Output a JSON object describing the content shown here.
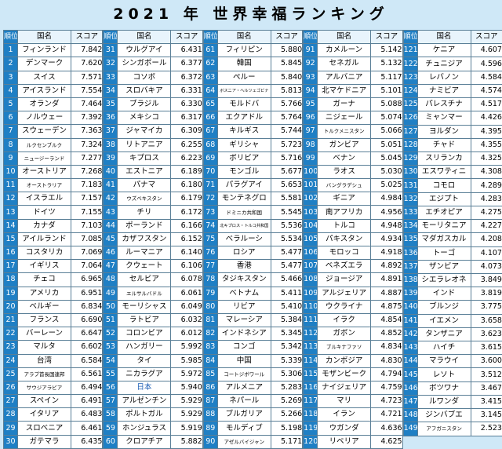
{
  "title": "2021 年 世界幸福ランキング",
  "headers": {
    "rank": "順位",
    "country": "国名",
    "score": "スコア"
  },
  "rows": [
    [
      "1",
      "フィンランド",
      "7.842"
    ],
    [
      "2",
      "デンマーク",
      "7.620"
    ],
    [
      "3",
      "スイス",
      "7.571"
    ],
    [
      "4",
      "アイスランド",
      "7.554"
    ],
    [
      "5",
      "オランダ",
      "7.464"
    ],
    [
      "6",
      "ノルウェー",
      "7.392"
    ],
    [
      "7",
      "スウェーデン",
      "7.363"
    ],
    [
      "8",
      "ルクセンブルク",
      "7.324"
    ],
    [
      "9",
      "ニュージーランド",
      "7.277"
    ],
    [
      "10",
      "オーストリア",
      "7.268"
    ],
    [
      "11",
      "オーストラリア",
      "7.183"
    ],
    [
      "12",
      "イスラエル",
      "7.157"
    ],
    [
      "13",
      "ドイツ",
      "7.155"
    ],
    [
      "14",
      "カナダ",
      "7.103"
    ],
    [
      "15",
      "アイルランド",
      "7.085"
    ],
    [
      "16",
      "コスタリカ",
      "7.069"
    ],
    [
      "17",
      "イギリス",
      "7.064"
    ],
    [
      "18",
      "チェコ",
      "6.965"
    ],
    [
      "19",
      "アメリカ",
      "6.951"
    ],
    [
      "20",
      "ベルギー",
      "6.834"
    ],
    [
      "21",
      "フランス",
      "6.690"
    ],
    [
      "22",
      "バーレーン",
      "6.647"
    ],
    [
      "23",
      "マルタ",
      "6.602"
    ],
    [
      "24",
      "台湾",
      "6.584"
    ],
    [
      "25",
      "アラブ首長国連邦",
      "6.561"
    ],
    [
      "26",
      "サウジアラビア",
      "6.494"
    ],
    [
      "27",
      "スペイン",
      "6.491"
    ],
    [
      "28",
      "イタリア",
      "6.483"
    ],
    [
      "29",
      "スロベニア",
      "6.461"
    ],
    [
      "30",
      "ガテマラ",
      "6.435"
    ],
    [
      "31",
      "ウルグアイ",
      "6.431"
    ],
    [
      "32",
      "シンガポール",
      "6.377"
    ],
    [
      "33",
      "コソボ",
      "6.372"
    ],
    [
      "34",
      "スロバキア",
      "6.331"
    ],
    [
      "35",
      "ブラジル",
      "6.330"
    ],
    [
      "36",
      "メキシコ",
      "6.317"
    ],
    [
      "37",
      "ジャマイカ",
      "6.309"
    ],
    [
      "38",
      "リトアニア",
      "6.255"
    ],
    [
      "39",
      "キプロス",
      "6.223"
    ],
    [
      "40",
      "エストニア",
      "6.189"
    ],
    [
      "41",
      "パナマ",
      "6.180"
    ],
    [
      "42",
      "ウズベキスタン",
      "6.179"
    ],
    [
      "43",
      "チリ",
      "6.172"
    ],
    [
      "44",
      "ポーランド",
      "6.166"
    ],
    [
      "45",
      "カザフスタン",
      "6.152"
    ],
    [
      "46",
      "ルーマニア",
      "6.140"
    ],
    [
      "47",
      "クウェート",
      "6.106"
    ],
    [
      "48",
      "セルビア",
      "6.078"
    ],
    [
      "49",
      "エルサルバドル",
      "6.061"
    ],
    [
      "50",
      "モーリシャス",
      "6.049"
    ],
    [
      "51",
      "ラトビア",
      "6.032"
    ],
    [
      "52",
      "コロンビア",
      "6.012"
    ],
    [
      "53",
      "ハンガリー",
      "5.992"
    ],
    [
      "54",
      "タイ",
      "5.985"
    ],
    [
      "55",
      "ニカラグア",
      "5.972"
    ],
    [
      "56",
      "日本",
      "5.940"
    ],
    [
      "57",
      "アルゼンチン",
      "5.929"
    ],
    [
      "58",
      "ポルトガル",
      "5.929"
    ],
    [
      "59",
      "ホンジュラス",
      "5.919"
    ],
    [
      "60",
      "クロアチア",
      "5.882"
    ],
    [
      "61",
      "フィリピン",
      "5.880"
    ],
    [
      "62",
      "韓国",
      "5.845"
    ],
    [
      "63",
      "ペルー",
      "5.840"
    ],
    [
      "64",
      "ボスニア・ヘルツェゴビナ",
      "5.813"
    ],
    [
      "65",
      "モルドバ",
      "5.766"
    ],
    [
      "66",
      "エクアドル",
      "5.764"
    ],
    [
      "67",
      "キルギス",
      "5.744"
    ],
    [
      "68",
      "ギリシャ",
      "5.723"
    ],
    [
      "69",
      "ボリビア",
      "5.716"
    ],
    [
      "70",
      "モンゴル",
      "5.677"
    ],
    [
      "71",
      "パラグアイ",
      "5.653"
    ],
    [
      "72",
      "モンテネグロ",
      "5.581"
    ],
    [
      "73",
      "ドミニカ共和国",
      "5.545"
    ],
    [
      "74",
      "北キプロス・トルコ共和国",
      "5.536"
    ],
    [
      "75",
      "ベラルーシ",
      "5.534"
    ],
    [
      "76",
      "ロシア",
      "5.477"
    ],
    [
      "77",
      "香港",
      "5.477"
    ],
    [
      "78",
      "タジキスタン",
      "5.466"
    ],
    [
      "79",
      "ベトナム",
      "5.411"
    ],
    [
      "80",
      "リビア",
      "5.410"
    ],
    [
      "81",
      "マレーシア",
      "5.384"
    ],
    [
      "82",
      "インドネシア",
      "5.345"
    ],
    [
      "83",
      "コンゴ",
      "5.342"
    ],
    [
      "84",
      "中国",
      "5.339"
    ],
    [
      "85",
      "コートジボワール",
      "5.306"
    ],
    [
      "86",
      "アルメニア",
      "5.283"
    ],
    [
      "87",
      "ネパール",
      "5.269"
    ],
    [
      "88",
      "ブルガリア",
      "5.266"
    ],
    [
      "89",
      "モルディブ",
      "5.198"
    ],
    [
      "90",
      "アゼルバイジャン",
      "5.171"
    ],
    [
      "91",
      "カメルーン",
      "5.142"
    ],
    [
      "92",
      "セネガル",
      "5.132"
    ],
    [
      "93",
      "アルバニア",
      "5.117"
    ],
    [
      "94",
      "北マケドニア",
      "5.101"
    ],
    [
      "95",
      "ガーナ",
      "5.088"
    ],
    [
      "96",
      "ニジェール",
      "5.074"
    ],
    [
      "97",
      "トルクメニスタン",
      "5.066"
    ],
    [
      "98",
      "ガンビア",
      "5.051"
    ],
    [
      "99",
      "ベナン",
      "5.045"
    ],
    [
      "100",
      "ラオス",
      "5.030"
    ],
    [
      "101",
      "バングラデシュ",
      "5.025"
    ],
    [
      "102",
      "ギニア",
      "4.984"
    ],
    [
      "103",
      "南アフリカ",
      "4.956"
    ],
    [
      "104",
      "トルコ",
      "4.948"
    ],
    [
      "105",
      "パキスタン",
      "4.934"
    ],
    [
      "106",
      "モロッコ",
      "4.918"
    ],
    [
      "107",
      "ベネズエラ",
      "4.892"
    ],
    [
      "108",
      "ジョージア",
      "4.891"
    ],
    [
      "109",
      "アルジェリア",
      "4.887"
    ],
    [
      "110",
      "ウクライナ",
      "4.875"
    ],
    [
      "111",
      "イラク",
      "4.854"
    ],
    [
      "112",
      "ガボン",
      "4.852"
    ],
    [
      "113",
      "ブルキナファソ",
      "4.834"
    ],
    [
      "114",
      "カンボジア",
      "4.830"
    ],
    [
      "115",
      "モザンビーク",
      "4.794"
    ],
    [
      "116",
      "ナイジェリア",
      "4.759"
    ],
    [
      "117",
      "マリ",
      "4.723"
    ],
    [
      "118",
      "イラン",
      "4.721"
    ],
    [
      "119",
      "ウガンダ",
      "4.636"
    ],
    [
      "120",
      "リベリア",
      "4.625"
    ],
    [
      "121",
      "ケニア",
      "4.607"
    ],
    [
      "122",
      "チュニジア",
      "4.596"
    ],
    [
      "123",
      "レバノン",
      "4.584"
    ],
    [
      "124",
      "ナミビア",
      "4.574"
    ],
    [
      "125",
      "パレスチナ",
      "4.517"
    ],
    [
      "126",
      "ミャンマー",
      "4.426"
    ],
    [
      "127",
      "ヨルダン",
      "4.395"
    ],
    [
      "128",
      "チャド",
      "4.355"
    ],
    [
      "129",
      "スリランカ",
      "4.325"
    ],
    [
      "130",
      "エスワティニ",
      "4.308"
    ],
    [
      "131",
      "コモロ",
      "4.289"
    ],
    [
      "132",
      "エジプト",
      "4.283"
    ],
    [
      "133",
      "エチオピア",
      "4.275"
    ],
    [
      "134",
      "モーリタニア",
      "4.227"
    ],
    [
      "135",
      "マダガスカル",
      "4.208"
    ],
    [
      "136",
      "トーゴ",
      "4.107"
    ],
    [
      "137",
      "ザンビア",
      "4.073"
    ],
    [
      "138",
      "シエラレオネ",
      "3.849"
    ],
    [
      "139",
      "インド",
      "3.819"
    ],
    [
      "140",
      "ブルンジ",
      "3.775"
    ],
    [
      "141",
      "イエメン",
      "3.658"
    ],
    [
      "142",
      "タンザニア",
      "3.623"
    ],
    [
      "143",
      "ハイチ",
      "3.615"
    ],
    [
      "144",
      "マラウイ",
      "3.600"
    ],
    [
      "145",
      "レソト",
      "3.512"
    ],
    [
      "146",
      "ボツワナ",
      "3.467"
    ],
    [
      "147",
      "ルワンダ",
      "3.415"
    ],
    [
      "148",
      "ジンバブエ",
      "3.145"
    ],
    [
      "149",
      "アフガニスタン",
      "2.523"
    ]
  ]
}
